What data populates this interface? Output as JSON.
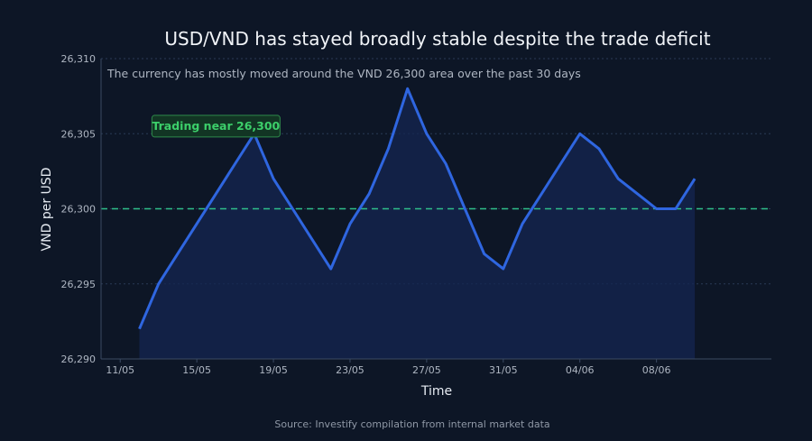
{
  "chart_data": {
    "type": "area",
    "title": "USD/VND has stayed broadly stable despite the trade deficit",
    "subtitle": "The currency has mostly moved around the VND 26,300 area over the past 30 days",
    "xlabel": "Time",
    "ylabel": "VND per USD",
    "source": "Source: Investify compilation from internal market data",
    "ylim": [
      26290,
      26310
    ],
    "yticks": [
      26290,
      26295,
      26300,
      26305,
      26310
    ],
    "ytick_labels": [
      "26,290",
      "26,295",
      "26,300",
      "26,305",
      "26,310"
    ],
    "xlim": [
      "2025-05-10",
      "2025-06-14"
    ],
    "xticks": [
      "2025-05-11",
      "2025-05-15",
      "2025-05-19",
      "2025-05-23",
      "2025-05-27",
      "2025-05-31",
      "2025-06-04",
      "2025-06-08"
    ],
    "xtick_labels": [
      "11/05",
      "15/05",
      "19/05",
      "23/05",
      "27/05",
      "31/05",
      "04/06",
      "08/06"
    ],
    "grid": true,
    "series": [
      {
        "x": [
          "2025-05-12",
          "2025-05-13",
          "2025-05-14",
          "2025-05-15",
          "2025-05-16",
          "2025-05-17",
          "2025-05-18",
          "2025-05-19",
          "2025-05-20",
          "2025-05-21",
          "2025-05-22",
          "2025-05-23",
          "2025-05-24",
          "2025-05-25",
          "2025-05-26",
          "2025-05-27",
          "2025-05-28",
          "2025-05-29",
          "2025-05-30",
          "2025-05-31",
          "2025-06-01",
          "2025-06-02",
          "2025-06-03",
          "2025-06-04",
          "2025-06-05",
          "2025-06-06",
          "2025-06-07",
          "2025-06-08",
          "2025-06-09",
          "2025-06-10"
        ],
        "values": [
          26292,
          26295,
          26297,
          26299,
          26301,
          26303,
          26305,
          26302,
          26300,
          26298,
          26296,
          26299,
          26301,
          26304,
          26308,
          26305,
          26303,
          26300,
          26297,
          26296,
          26299,
          26301,
          26303,
          26305,
          26304,
          26302,
          26301,
          26300,
          26300,
          26302
        ],
        "color": "#2f66e0"
      }
    ],
    "reference_line": {
      "value": 26300,
      "color": "#2fbf8a"
    },
    "annotation": {
      "text": "Trading near 26,300",
      "color": "#3ccf6a",
      "date": "2025-05-16",
      "value": 26305.5
    },
    "colors": {
      "background": "#0d1626",
      "line": "#2f66e0",
      "fill": "#142552",
      "reference": "#2fbf8a",
      "grid": "#2a3a55"
    }
  }
}
